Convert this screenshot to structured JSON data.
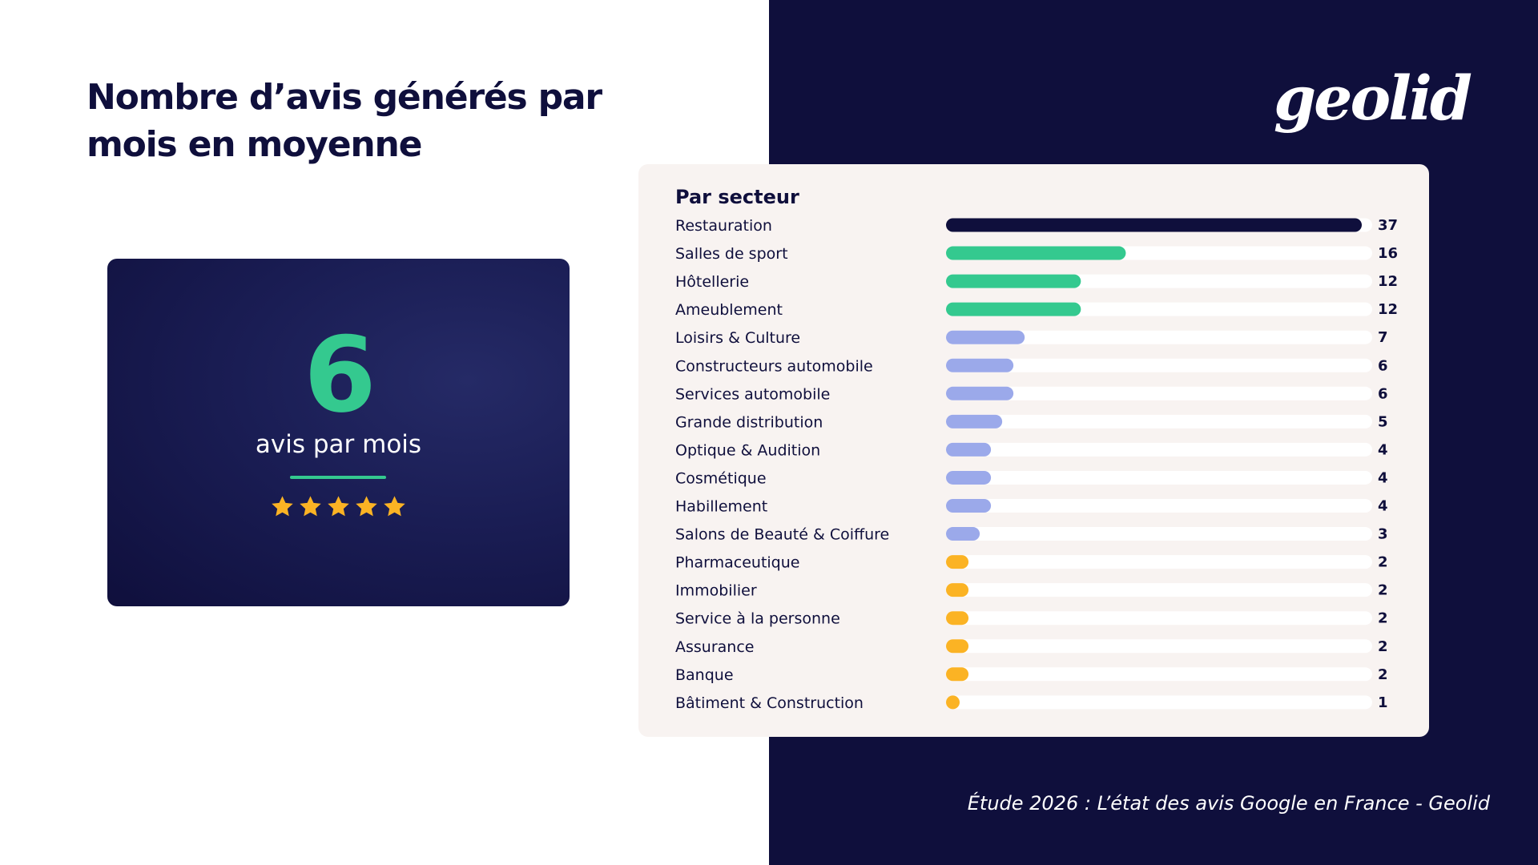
{
  "page": {
    "title": "Nombre d’avis générés par mois en moyenne",
    "logo_text": "geolid",
    "source": "Étude 2026 : L’état des avis Google en France - Geolid",
    "colors": {
      "navy": "#0f0f3c",
      "green": "#34c98f",
      "lavender": "#9ba9ea",
      "amber": "#fbb324",
      "panel": "#f8f3f1",
      "track": "#ffffff"
    }
  },
  "kpi": {
    "value": "6",
    "label": "avis par mois",
    "stars": 5,
    "star_icon": "star-icon",
    "star_color": "#fbb324"
  },
  "chart_data": {
    "type": "bar",
    "orientation": "horizontal",
    "title": "Par secteur",
    "xlim": [
      0,
      37
    ],
    "grid": false,
    "categories": [
      "Restauration",
      "Salles de sport",
      "Hôtellerie",
      "Ameublement",
      "Loisirs & Culture",
      "Constructeurs automobile",
      "Services automobile",
      "Grande distribution",
      "Optique & Audition",
      "Cosmétique",
      "Habillement",
      "Salons de Beauté & Coiffure",
      "Pharmaceutique",
      "Immobilier",
      "Service à la personne",
      "Assurance",
      "Banque",
      "Bâtiment & Construction"
    ],
    "values": [
      37,
      16,
      12,
      12,
      7,
      6,
      6,
      5,
      4,
      4,
      4,
      3,
      2,
      2,
      2,
      2,
      2,
      1
    ],
    "bar_colors": [
      "#0f0f3c",
      "#34c98f",
      "#34c98f",
      "#34c98f",
      "#9ba9ea",
      "#9ba9ea",
      "#9ba9ea",
      "#9ba9ea",
      "#9ba9ea",
      "#9ba9ea",
      "#9ba9ea",
      "#9ba9ea",
      "#fbb324",
      "#fbb324",
      "#fbb324",
      "#fbb324",
      "#fbb324",
      "#fbb324"
    ]
  }
}
